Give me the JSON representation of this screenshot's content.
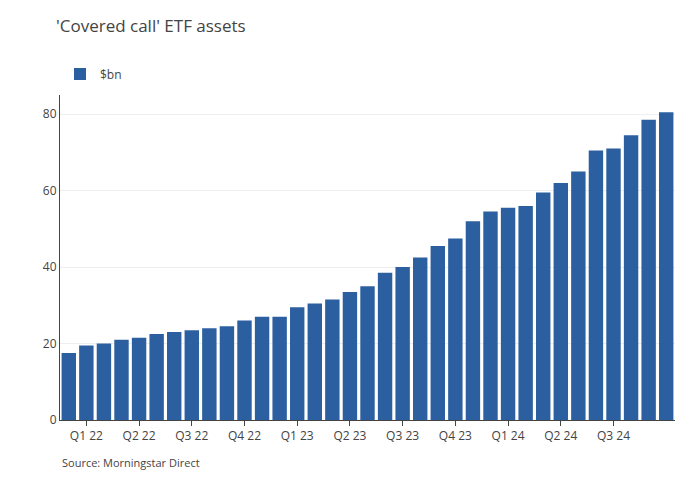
{
  "chart_data": {
    "type": "bar",
    "title": "'Covered call' ETF assets",
    "categories": [
      null,
      "Q1 22",
      null,
      null,
      "Q2 22",
      null,
      null,
      "Q3 22",
      null,
      null,
      "Q4 22",
      null,
      null,
      "Q1 23",
      null,
      null,
      "Q2 23",
      null,
      null,
      "Q3 23",
      null,
      null,
      "Q4 23",
      null,
      null,
      "Q1 24",
      null,
      null,
      "Q2 24",
      null,
      null,
      "Q3 24",
      null,
      null,
      null
    ],
    "series": [
      {
        "name": "$bn",
        "color": "#2B5FA0",
        "values": [
          17.5,
          19.5,
          20.0,
          21.0,
          21.5,
          22.5,
          23.0,
          23.5,
          24.0,
          24.5,
          26.0,
          27.0,
          27.0,
          29.5,
          30.5,
          31.5,
          33.5,
          35.0,
          38.5,
          40.0,
          42.5,
          45.5,
          47.5,
          52.0,
          54.5,
          55.5,
          56.0,
          59.5,
          62.0,
          65.0,
          70.5,
          71.0,
          74.5,
          78.5,
          80.5
        ]
      }
    ],
    "ylim": [
      0,
      85
    ],
    "yticks": [
      0,
      20,
      40,
      60,
      80
    ],
    "grid": true,
    "legend": "upper left",
    "annotations": [
      "Source: Morningstar Direct"
    ]
  }
}
